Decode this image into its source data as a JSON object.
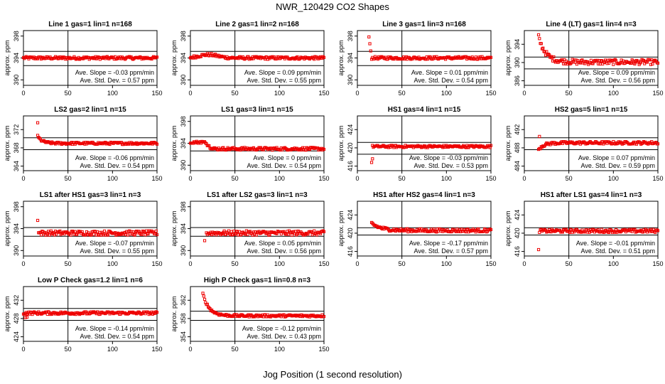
{
  "figure": {
    "title": "NWR_120429  CO2 Shapes",
    "xlabel": "Jog Position (1 second resolution)"
  },
  "chart_data": [
    {
      "type": "scatter",
      "title": "Line 1 gas=1 lin=1 n=168",
      "ylabel": "approx. ppm",
      "xlim": [
        0,
        150
      ],
      "ylim": [
        389,
        399
      ],
      "yticks": [
        390,
        394,
        398
      ],
      "xticks": [
        0,
        50,
        100,
        150
      ],
      "hlines": [
        395.2,
        392.6
      ],
      "vline": 50,
      "slope_text": "Ave. Slope = -0.03  ppm/min",
      "std_text": "Ave. Std. Dev. = 0.57  ppm",
      "x_start": 0,
      "base": 394.0,
      "noise": 0.25,
      "transient": {
        "kind": "none"
      }
    },
    {
      "type": "scatter",
      "title": "Line 2 gas=1 lin=2 n=168",
      "ylabel": "approx. ppm",
      "xlim": [
        0,
        150
      ],
      "ylim": [
        389,
        399
      ],
      "yticks": [
        390,
        394,
        398
      ],
      "xticks": [
        0,
        50,
        100,
        150
      ],
      "hlines": [
        395.2,
        392.6
      ],
      "vline": 50,
      "slope_text": "Ave. Slope = 0.09  ppm/min",
      "std_text": "Ave. Std. Dev. = 0.55  ppm",
      "x_start": 0,
      "base": 394.0,
      "noise": 0.25,
      "transient": {
        "kind": "bump",
        "amp": 0.6,
        "center": 20,
        "width": 15
      }
    },
    {
      "type": "scatter",
      "title": "Line 3 gas=1 lin=3 n=168",
      "ylabel": "approx. ppm",
      "xlim": [
        0,
        150
      ],
      "ylim": [
        389,
        399
      ],
      "yticks": [
        390,
        394,
        398
      ],
      "xticks": [
        0,
        50,
        100,
        150
      ],
      "hlines": [
        395.2,
        392.6
      ],
      "vline": 50,
      "slope_text": "Ave. Slope = 0.01  ppm/min",
      "std_text": "Ave. Std. Dev. = 0.54  ppm",
      "x_start": 0,
      "base": 394.0,
      "noise": 0.25,
      "transient": {
        "kind": "drop",
        "start": 399.2,
        "hold": 12,
        "end": 16
      }
    },
    {
      "type": "scatter",
      "title": "Line 4 (LT) gas=1 lin=4 n=3",
      "ylabel": "approx. ppm",
      "xlim": [
        0,
        150
      ],
      "ylim": [
        385,
        397
      ],
      "yticks": [
        386,
        390,
        394
      ],
      "xticks": [
        0,
        50,
        100,
        150
      ],
      "hlines": [
        391.2,
        388.6
      ],
      "vline": 50,
      "slope_text": "Ave. Slope = 0.09  ppm/min",
      "std_text": "Ave. Std. Dev. = 0.56  ppm",
      "x_start": 16,
      "base": 390.1,
      "noise": 0.55,
      "transient": {
        "kind": "decay",
        "amp": 5.5,
        "tau": 8
      }
    },
    {
      "type": "scatter",
      "title": "LS2 gas=2 lin=1 n=15",
      "ylabel": "approx. ppm",
      "xlim": [
        0,
        150
      ],
      "ylim": [
        363,
        375
      ],
      "yticks": [
        364,
        368,
        372
      ],
      "xticks": [
        0,
        50,
        100,
        150
      ],
      "hlines": [
        370.2,
        367.6
      ],
      "vline": 50,
      "slope_text": "Ave. Slope = -0.06  ppm/min",
      "std_text": "Ave. Std. Dev. = 0.54  ppm",
      "x_start": 16,
      "base": 369.0,
      "noise": 0.25,
      "transient": {
        "kind": "decay",
        "amp": 1.5,
        "tau": 5
      },
      "outliers": [
        [
          16,
          373.5
        ]
      ]
    },
    {
      "type": "scatter",
      "title": "LS1 gas=3 lin=1 n=15",
      "ylabel": "approx. ppm",
      "xlim": [
        0,
        150
      ],
      "ylim": [
        389,
        399
      ],
      "yticks": [
        390,
        394,
        398
      ],
      "xticks": [
        0,
        50,
        100,
        150
      ],
      "hlines": [
        395.2,
        392.6
      ],
      "vline": 50,
      "slope_text": "Ave. Slope = 0  ppm/min",
      "std_text": "Ave. Std. Dev. = 0.54  ppm",
      "x_start": 0,
      "base": 393.0,
      "noise": 0.25,
      "transient": {
        "kind": "drop",
        "start": 394.2,
        "hold": 16,
        "end": 24
      }
    },
    {
      "type": "scatter",
      "title": "HS1 gas=4 lin=1 n=15",
      "ylabel": "approx. ppm",
      "xlim": [
        0,
        150
      ],
      "ylim": [
        415,
        427
      ],
      "yticks": [
        416,
        420,
        424
      ],
      "xticks": [
        0,
        50,
        100,
        150
      ],
      "hlines": [
        421.2,
        418.6
      ],
      "vline": 50,
      "slope_text": "Ave. Slope = -0.03  ppm/min",
      "std_text": "Ave. Std. Dev. = 0.53  ppm",
      "x_start": 17,
      "base": 420.3,
      "noise": 0.25,
      "transient": {
        "kind": "none"
      },
      "outliers": [
        [
          16,
          416.8
        ],
        [
          17,
          417.6
        ]
      ]
    },
    {
      "type": "scatter",
      "title": "HS2 gas=5 lin=1 n=15",
      "ylabel": "approx. ppm",
      "xlim": [
        0,
        150
      ],
      "ylim": [
        483,
        495
      ],
      "yticks": [
        484,
        488,
        492
      ],
      "xticks": [
        0,
        50,
        100,
        150
      ],
      "hlines": [
        490.2,
        487.6
      ],
      "vline": 50,
      "slope_text": "Ave. Slope = 0.07  ppm/min",
      "std_text": "Ave. Std. Dev. = 0.59  ppm",
      "x_start": 16,
      "base": 489.1,
      "noise": 0.3,
      "transient": {
        "kind": "decay",
        "amp": -1.4,
        "tau": 6
      },
      "outliers": [
        [
          17,
          490.5
        ]
      ]
    },
    {
      "type": "scatter",
      "title": "LS1 after HS1 gas=3 lin=1 n=3",
      "ylabel": "approx. ppm",
      "xlim": [
        0,
        150
      ],
      "ylim": [
        389,
        399
      ],
      "yticks": [
        390,
        394,
        398
      ],
      "xticks": [
        0,
        50,
        100,
        150
      ],
      "hlines": [
        394.2,
        392.6
      ],
      "vline": 50,
      "slope_text": "Ave. Slope = -0.07  ppm/min",
      "std_text": "Ave. Std. Dev. = 0.55  ppm",
      "x_start": 17,
      "base": 393.2,
      "noise": 0.4,
      "transient": {
        "kind": "none"
      },
      "outliers": [
        [
          16,
          395.5
        ]
      ]
    },
    {
      "type": "scatter",
      "title": "LS1 after LS2 gas=3 lin=1 n=3",
      "ylabel": "approx. ppm",
      "xlim": [
        0,
        150
      ],
      "ylim": [
        389,
        399
      ],
      "yticks": [
        390,
        394,
        398
      ],
      "xticks": [
        0,
        50,
        100,
        150
      ],
      "hlines": [
        394.2,
        392.6
      ],
      "vline": 50,
      "slope_text": "Ave. Slope = 0.05  ppm/min",
      "std_text": "Ave. Std. Dev. = 0.56  ppm",
      "x_start": 18,
      "base": 393.2,
      "noise": 0.4,
      "transient": {
        "kind": "none"
      },
      "outliers": [
        [
          16,
          391.8
        ]
      ]
    },
    {
      "type": "scatter",
      "title": "HS1 after HS2 gas=4 lin=1 n=3",
      "ylabel": "approx. ppm",
      "xlim": [
        0,
        150
      ],
      "ylim": [
        415,
        427
      ],
      "yticks": [
        416,
        420,
        424
      ],
      "xticks": [
        0,
        50,
        100,
        150
      ],
      "hlines": [
        421.2,
        419.6
      ],
      "vline": 50,
      "slope_text": "Ave. Slope = -0.17  ppm/min",
      "std_text": "Ave. Std. Dev. = 0.57  ppm",
      "x_start": 16,
      "base": 420.6,
      "noise": 0.35,
      "transient": {
        "kind": "decay",
        "amp": 1.6,
        "tau": 10
      }
    },
    {
      "type": "scatter",
      "title": "HS1 after LS1 gas=4 lin=1 n=3",
      "ylabel": "approx. ppm",
      "xlim": [
        0,
        150
      ],
      "ylim": [
        415,
        427
      ],
      "yticks": [
        416,
        420,
        424
      ],
      "xticks": [
        0,
        50,
        100,
        150
      ],
      "hlines": [
        421.2,
        419.6
      ],
      "vline": 50,
      "slope_text": "Ave. Slope = -0.01  ppm/min",
      "std_text": "Ave. Std. Dev. = 0.51  ppm",
      "x_start": 17,
      "base": 420.5,
      "noise": 0.35,
      "transient": {
        "kind": "none"
      },
      "outliers": [
        [
          16,
          416.4
        ]
      ]
    },
    {
      "type": "scatter",
      "title": "Low P Check gas=1.2 lin=1 n=6",
      "ylabel": "approx. ppm",
      "xlim": [
        0,
        150
      ],
      "ylim": [
        423,
        435
      ],
      "yticks": [
        424,
        428,
        432
      ],
      "xticks": [
        0,
        50,
        100,
        150
      ],
      "hlines": [
        430.2,
        427.6
      ],
      "vline": 50,
      "slope_text": "Ave. Slope = -0.14  ppm/min",
      "std_text": "Ave. Std. Dev. = 0.54  ppm",
      "x_start": 0,
      "base": 429.2,
      "noise": 0.3,
      "transient": {
        "kind": "none"
      },
      "outliers": [
        [
          2,
          428.2
        ],
        [
          4,
          428.3
        ]
      ]
    },
    {
      "type": "scatter",
      "title": "High P Check gas=1 lin=0.8 n=3",
      "ylabel": "approx. ppm",
      "xlim": [
        0,
        150
      ],
      "ylim": [
        353,
        365
      ],
      "yticks": [
        354,
        358,
        362
      ],
      "xticks": [
        0,
        50,
        100,
        150
      ],
      "hlines": [
        359.6,
        357.6
      ],
      "vline": 50,
      "slope_text": "Ave. Slope = -0.12  ppm/min",
      "std_text": "Ave. Std. Dev. = 0.43  ppm",
      "x_start": 14,
      "base": 358.6,
      "noise": 0.25,
      "transient": {
        "kind": "decay",
        "amp": 4.8,
        "tau": 7
      }
    }
  ],
  "colors": {
    "points": "#ee0000",
    "axes": "#000000",
    "text": "#000000",
    "background": "#ffffff"
  }
}
